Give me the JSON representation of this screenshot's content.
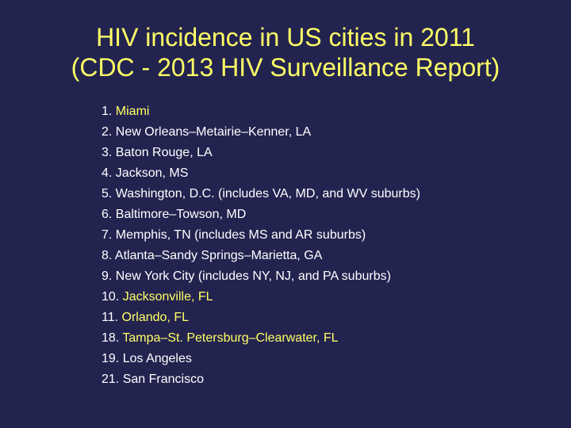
{
  "title": {
    "line1": "HIV incidence in US cities in 2011",
    "line2": "(CDC - 2013 HIV Surveillance Report)"
  },
  "colors": {
    "background": "#232350",
    "title": "#ffff66",
    "text": "#ffffff",
    "highlight": "#ffff66"
  },
  "cities": [
    {
      "rank": "1.",
      "name": "Miami",
      "highlight": true
    },
    {
      "rank": "2.",
      "name": "New Orleans–Metairie–Kenner, LA",
      "highlight": false
    },
    {
      "rank": "3.",
      "name": "Baton Rouge, LA",
      "highlight": false
    },
    {
      "rank": "4.",
      "name": "Jackson, MS",
      "highlight": false
    },
    {
      "rank": "5.",
      "name": "Washington, D.C. (includes VA, MD, and WV suburbs)",
      "highlight": false
    },
    {
      "rank": "6.",
      "name": "Baltimore–Towson, MD",
      "highlight": false
    },
    {
      "rank": "7.",
      "name": "Memphis, TN (includes MS and AR suburbs)",
      "highlight": false
    },
    {
      "rank": "8.",
      "name": "Atlanta–Sandy Springs–Marietta, GA",
      "highlight": false
    },
    {
      "rank": "9.",
      "name": "New York City (includes NY, NJ, and PA suburbs)",
      "highlight": false
    },
    {
      "rank": "10.",
      "name": "Jacksonville, FL",
      "highlight": true
    },
    {
      "rank": "11.",
      "name": "Orlando, FL",
      "highlight": true
    },
    {
      "rank": "18.",
      "name": "Tampa–St. Petersburg–Clearwater, FL",
      "highlight": true
    },
    {
      "rank": "19.",
      "name": "Los Angeles",
      "highlight": false
    },
    {
      "rank": "21.",
      "name": "San Francisco",
      "highlight": false
    }
  ]
}
